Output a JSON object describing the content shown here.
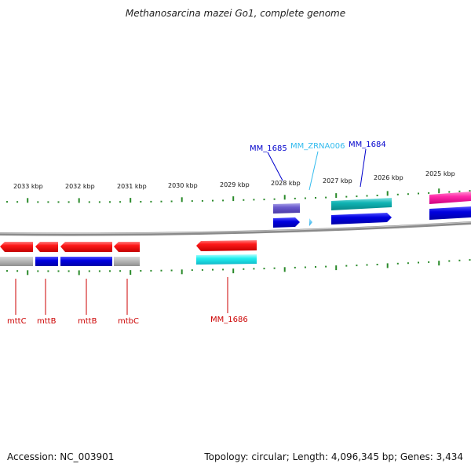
{
  "title": "Methanosarcina mazei Go1, complete genome",
  "footer": {
    "accession": "Accession: NC_003901",
    "summary": "Topology: circular; Length: 4,096,345 bp; Genes: 3,434"
  },
  "colors": {
    "background": "#ffffff",
    "backbone": "#8a8a8a",
    "tick": "#2a8a2a",
    "forward_label": "#0000cc",
    "forward_rna_label": "#33bbee",
    "reverse_label": "#cc0000"
  },
  "scale_labels": [
    "2033 kbp",
    "2032 kbp",
    "2031 kbp",
    "2030 kbp",
    "2029 kbp",
    "2028 kbp",
    "2027 kbp",
    "2026 kbp",
    "2025 kbp"
  ],
  "forward_labels": [
    {
      "text": "MM_1685",
      "type": "gene"
    },
    {
      "text": "MM_ZRNA006",
      "type": "rna"
    },
    {
      "text": "MM_1684",
      "type": "gene"
    }
  ],
  "reverse_labels": [
    {
      "text": "mttC"
    },
    {
      "text": "mttB"
    },
    {
      "text": "mttB"
    },
    {
      "text": "mtbC"
    },
    {
      "text": "MM_1686"
    }
  ]
}
